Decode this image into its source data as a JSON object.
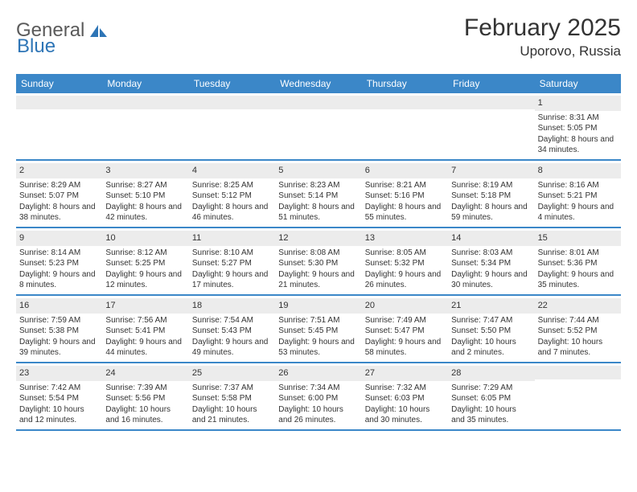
{
  "logo": {
    "textA": "General",
    "textB": "Blue"
  },
  "title": "February 2025",
  "location": "Uporovo, Russia",
  "colors": {
    "header_bg": "#3b87c8",
    "daynum_bg": "#ececec",
    "text": "#333333",
    "logo_gray": "#5a5a5a",
    "logo_blue": "#2e75b6"
  },
  "dayHeaders": [
    "Sunday",
    "Monday",
    "Tuesday",
    "Wednesday",
    "Thursday",
    "Friday",
    "Saturday"
  ],
  "weeks": [
    [
      {
        "n": "",
        "sr": "",
        "ss": "",
        "dl": ""
      },
      {
        "n": "",
        "sr": "",
        "ss": "",
        "dl": ""
      },
      {
        "n": "",
        "sr": "",
        "ss": "",
        "dl": ""
      },
      {
        "n": "",
        "sr": "",
        "ss": "",
        "dl": ""
      },
      {
        "n": "",
        "sr": "",
        "ss": "",
        "dl": ""
      },
      {
        "n": "",
        "sr": "",
        "ss": "",
        "dl": ""
      },
      {
        "n": "1",
        "sr": "Sunrise: 8:31 AM",
        "ss": "Sunset: 5:05 PM",
        "dl": "Daylight: 8 hours and 34 minutes."
      }
    ],
    [
      {
        "n": "2",
        "sr": "Sunrise: 8:29 AM",
        "ss": "Sunset: 5:07 PM",
        "dl": "Daylight: 8 hours and 38 minutes."
      },
      {
        "n": "3",
        "sr": "Sunrise: 8:27 AM",
        "ss": "Sunset: 5:10 PM",
        "dl": "Daylight: 8 hours and 42 minutes."
      },
      {
        "n": "4",
        "sr": "Sunrise: 8:25 AM",
        "ss": "Sunset: 5:12 PM",
        "dl": "Daylight: 8 hours and 46 minutes."
      },
      {
        "n": "5",
        "sr": "Sunrise: 8:23 AM",
        "ss": "Sunset: 5:14 PM",
        "dl": "Daylight: 8 hours and 51 minutes."
      },
      {
        "n": "6",
        "sr": "Sunrise: 8:21 AM",
        "ss": "Sunset: 5:16 PM",
        "dl": "Daylight: 8 hours and 55 minutes."
      },
      {
        "n": "7",
        "sr": "Sunrise: 8:19 AM",
        "ss": "Sunset: 5:18 PM",
        "dl": "Daylight: 8 hours and 59 minutes."
      },
      {
        "n": "8",
        "sr": "Sunrise: 8:16 AM",
        "ss": "Sunset: 5:21 PM",
        "dl": "Daylight: 9 hours and 4 minutes."
      }
    ],
    [
      {
        "n": "9",
        "sr": "Sunrise: 8:14 AM",
        "ss": "Sunset: 5:23 PM",
        "dl": "Daylight: 9 hours and 8 minutes."
      },
      {
        "n": "10",
        "sr": "Sunrise: 8:12 AM",
        "ss": "Sunset: 5:25 PM",
        "dl": "Daylight: 9 hours and 12 minutes."
      },
      {
        "n": "11",
        "sr": "Sunrise: 8:10 AM",
        "ss": "Sunset: 5:27 PM",
        "dl": "Daylight: 9 hours and 17 minutes."
      },
      {
        "n": "12",
        "sr": "Sunrise: 8:08 AM",
        "ss": "Sunset: 5:30 PM",
        "dl": "Daylight: 9 hours and 21 minutes."
      },
      {
        "n": "13",
        "sr": "Sunrise: 8:05 AM",
        "ss": "Sunset: 5:32 PM",
        "dl": "Daylight: 9 hours and 26 minutes."
      },
      {
        "n": "14",
        "sr": "Sunrise: 8:03 AM",
        "ss": "Sunset: 5:34 PM",
        "dl": "Daylight: 9 hours and 30 minutes."
      },
      {
        "n": "15",
        "sr": "Sunrise: 8:01 AM",
        "ss": "Sunset: 5:36 PM",
        "dl": "Daylight: 9 hours and 35 minutes."
      }
    ],
    [
      {
        "n": "16",
        "sr": "Sunrise: 7:59 AM",
        "ss": "Sunset: 5:38 PM",
        "dl": "Daylight: 9 hours and 39 minutes."
      },
      {
        "n": "17",
        "sr": "Sunrise: 7:56 AM",
        "ss": "Sunset: 5:41 PM",
        "dl": "Daylight: 9 hours and 44 minutes."
      },
      {
        "n": "18",
        "sr": "Sunrise: 7:54 AM",
        "ss": "Sunset: 5:43 PM",
        "dl": "Daylight: 9 hours and 49 minutes."
      },
      {
        "n": "19",
        "sr": "Sunrise: 7:51 AM",
        "ss": "Sunset: 5:45 PM",
        "dl": "Daylight: 9 hours and 53 minutes."
      },
      {
        "n": "20",
        "sr": "Sunrise: 7:49 AM",
        "ss": "Sunset: 5:47 PM",
        "dl": "Daylight: 9 hours and 58 minutes."
      },
      {
        "n": "21",
        "sr": "Sunrise: 7:47 AM",
        "ss": "Sunset: 5:50 PM",
        "dl": "Daylight: 10 hours and 2 minutes."
      },
      {
        "n": "22",
        "sr": "Sunrise: 7:44 AM",
        "ss": "Sunset: 5:52 PM",
        "dl": "Daylight: 10 hours and 7 minutes."
      }
    ],
    [
      {
        "n": "23",
        "sr": "Sunrise: 7:42 AM",
        "ss": "Sunset: 5:54 PM",
        "dl": "Daylight: 10 hours and 12 minutes."
      },
      {
        "n": "24",
        "sr": "Sunrise: 7:39 AM",
        "ss": "Sunset: 5:56 PM",
        "dl": "Daylight: 10 hours and 16 minutes."
      },
      {
        "n": "25",
        "sr": "Sunrise: 7:37 AM",
        "ss": "Sunset: 5:58 PM",
        "dl": "Daylight: 10 hours and 21 minutes."
      },
      {
        "n": "26",
        "sr": "Sunrise: 7:34 AM",
        "ss": "Sunset: 6:00 PM",
        "dl": "Daylight: 10 hours and 26 minutes."
      },
      {
        "n": "27",
        "sr": "Sunrise: 7:32 AM",
        "ss": "Sunset: 6:03 PM",
        "dl": "Daylight: 10 hours and 30 minutes."
      },
      {
        "n": "28",
        "sr": "Sunrise: 7:29 AM",
        "ss": "Sunset: 6:05 PM",
        "dl": "Daylight: 10 hours and 35 minutes."
      },
      {
        "n": "",
        "sr": "",
        "ss": "",
        "dl": ""
      }
    ]
  ]
}
